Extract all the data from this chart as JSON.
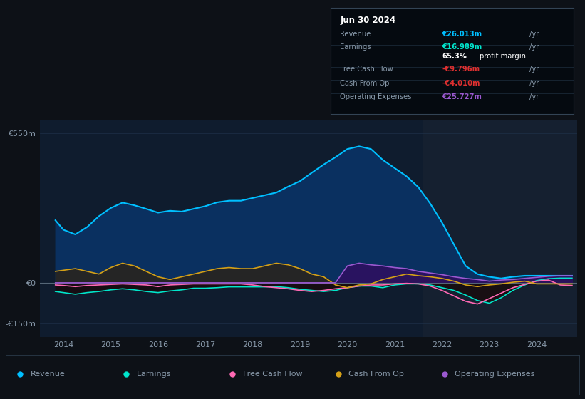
{
  "bg_color": "#0d1117",
  "chart_area_color": "#0f1c2e",
  "grid_color": "#1e3048",
  "text_color": "#8899aa",
  "title_color": "#ffffff",
  "ylim": [
    -200,
    600
  ],
  "yticks": [
    -150,
    0,
    550
  ],
  "ytick_labels": [
    "-€150m",
    "€0",
    "€550m"
  ],
  "xlim_start": 2013.5,
  "xlim_end": 2024.85,
  "xticks": [
    2014,
    2015,
    2016,
    2017,
    2018,
    2019,
    2020,
    2021,
    2022,
    2023,
    2024
  ],
  "highlight_start": 2021.6,
  "highlight_end": 2024.85,
  "highlight_color": "#152030",
  "zero_line_color": "#556677",
  "revenue_color": "#00bfff",
  "earnings_color": "#00e5cc",
  "fcf_color": "#ff69b4",
  "cashfromop_color": "#d4a017",
  "opex_color": "#9b59d0",
  "fill_revenue_color": "#0a3060",
  "fill_cashfromop_pos_color": "#2a2a2a",
  "fill_opex_color": "#2d1060",
  "info_box_bg": "#050a10",
  "info_box_border": "#334455",
  "legend_bg": "#0d1117",
  "legend_border": "#2a3a4a",
  "years": [
    2013.83,
    2014.0,
    2014.25,
    2014.5,
    2014.75,
    2015.0,
    2015.25,
    2015.5,
    2015.75,
    2016.0,
    2016.25,
    2016.5,
    2016.75,
    2017.0,
    2017.25,
    2017.5,
    2017.75,
    2018.0,
    2018.25,
    2018.5,
    2018.75,
    2019.0,
    2019.25,
    2019.5,
    2019.75,
    2020.0,
    2020.25,
    2020.5,
    2020.75,
    2021.0,
    2021.25,
    2021.5,
    2021.75,
    2022.0,
    2022.25,
    2022.5,
    2022.75,
    2023.0,
    2023.25,
    2023.5,
    2023.75,
    2024.0,
    2024.25,
    2024.5,
    2024.75
  ],
  "revenue": [
    230,
    195,
    178,
    205,
    245,
    275,
    295,
    285,
    272,
    258,
    265,
    262,
    272,
    282,
    296,
    302,
    302,
    312,
    322,
    332,
    354,
    374,
    405,
    435,
    462,
    492,
    502,
    492,
    452,
    422,
    392,
    352,
    292,
    222,
    142,
    62,
    32,
    22,
    16,
    22,
    26,
    26,
    26,
    26,
    26
  ],
  "earnings": [
    -32,
    -36,
    -42,
    -36,
    -32,
    -26,
    -22,
    -26,
    -32,
    -36,
    -30,
    -26,
    -20,
    -20,
    -18,
    -15,
    -15,
    -15,
    -15,
    -14,
    -18,
    -24,
    -28,
    -32,
    -28,
    -18,
    -12,
    -12,
    -18,
    -8,
    -4,
    -4,
    -8,
    -18,
    -28,
    -45,
    -65,
    -75,
    -55,
    -28,
    -8,
    8,
    15,
    17,
    17
  ],
  "fcf": [
    -8,
    -10,
    -14,
    -10,
    -8,
    -6,
    -4,
    -6,
    -8,
    -14,
    -8,
    -6,
    -4,
    -4,
    -4,
    -4,
    -4,
    -8,
    -14,
    -18,
    -22,
    -28,
    -32,
    -28,
    -22,
    -18,
    -12,
    -8,
    -8,
    -4,
    -2,
    -4,
    -12,
    -28,
    -48,
    -68,
    -78,
    -58,
    -38,
    -18,
    -6,
    6,
    10,
    -8,
    -10
  ],
  "cashfromop": [
    42,
    46,
    52,
    42,
    32,
    56,
    72,
    62,
    42,
    22,
    12,
    22,
    32,
    42,
    52,
    56,
    52,
    52,
    62,
    72,
    66,
    52,
    32,
    22,
    -8,
    -18,
    -8,
    -4,
    12,
    22,
    32,
    26,
    22,
    16,
    6,
    -8,
    -14,
    -8,
    -4,
    2,
    6,
    -4,
    -4,
    -4,
    -4
  ],
  "opex": [
    0,
    0,
    0,
    0,
    0,
    0,
    0,
    0,
    0,
    0,
    0,
    0,
    0,
    0,
    0,
    0,
    0,
    0,
    0,
    0,
    0,
    0,
    0,
    0,
    0,
    62,
    72,
    66,
    62,
    56,
    52,
    42,
    36,
    30,
    22,
    16,
    12,
    6,
    10,
    12,
    16,
    20,
    24,
    26,
    26
  ],
  "info_title": "Jun 30 2024",
  "info_rows": [
    {
      "label": "Revenue",
      "value": "€26.013m /yr",
      "value_color": "#00bfff"
    },
    {
      "label": "Earnings",
      "value": "€16.989m /yr",
      "value_color": "#00e5cc"
    },
    {
      "label": "",
      "value": "65.3% profit margin",
      "value_color": "#ffffff"
    },
    {
      "label": "Free Cash Flow",
      "value": "-€9.796m /yr",
      "value_color": "#e03030"
    },
    {
      "label": "Cash From Op",
      "value": "-€4.010m /yr",
      "value_color": "#e03030"
    },
    {
      "label": "Operating Expenses",
      "value": "€25.727m /yr",
      "value_color": "#9b59d0"
    }
  ],
  "legend_items": [
    {
      "label": "Revenue",
      "color": "#00bfff"
    },
    {
      "label": "Earnings",
      "color": "#00e5cc"
    },
    {
      "label": "Free Cash Flow",
      "color": "#ff69b4"
    },
    {
      "label": "Cash From Op",
      "color": "#d4a017"
    },
    {
      "label": "Operating Expenses",
      "color": "#9b59d0"
    }
  ]
}
